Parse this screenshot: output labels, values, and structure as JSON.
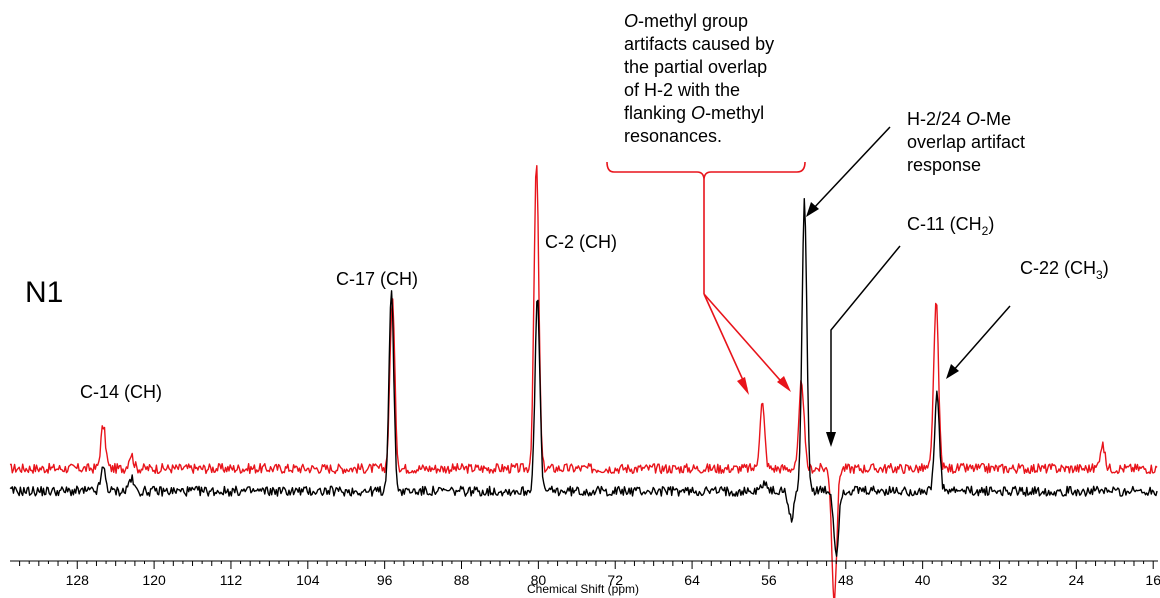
{
  "chart_data": {
    "type": "line",
    "panel_label": "N1",
    "xlabel": "Chemical Shift (ppm)",
    "xlim": [
      135,
      15.5
    ],
    "x_ticks": [
      "128",
      "120",
      "112",
      "104",
      "96",
      "88",
      "80",
      "72",
      "64",
      "56",
      "48",
      "40",
      "32",
      "24",
      "16"
    ],
    "colors": {
      "red": "#e8141b",
      "black": "#000000"
    },
    "series": [
      {
        "color": "red",
        "baseline": 0.06,
        "peaks": [
          {
            "x": 125.3,
            "h": 0.3
          },
          {
            "x": 122.4,
            "h": 0.1
          },
          {
            "x": 95.2,
            "h": 1.2
          },
          {
            "x": 80.2,
            "h": 2.15
          },
          {
            "x": 56.7,
            "h": 0.46
          },
          {
            "x": 52.6,
            "h": 0.62
          },
          {
            "x": 49.2,
            "h": -0.95
          },
          {
            "x": 38.6,
            "h": 1.18
          },
          {
            "x": 21.3,
            "h": 0.17
          }
        ]
      },
      {
        "color": "black",
        "baseline": -0.1,
        "peaks": [
          {
            "x": 125.3,
            "h": 0.16
          },
          {
            "x": 122.4,
            "h": 0.09
          },
          {
            "x": 95.3,
            "h": 1.4
          },
          {
            "x": 80.1,
            "h": 1.36
          },
          {
            "x": 56.5,
            "h": 0.07
          },
          {
            "x": 53.7,
            "h": -0.2
          },
          {
            "x": 52.3,
            "h": 2.05
          },
          {
            "x": 49.0,
            "h": -0.44
          },
          {
            "x": 38.5,
            "h": 0.68
          }
        ]
      }
    ]
  },
  "annotations": {
    "c14": "C-14 (CH)",
    "c17": "C-17 (CH)",
    "c2": "C-2 (CH)",
    "omethyl": {
      "prefix": "O",
      "l1": "-methyl group",
      "l2": "artifacts caused by",
      "l3": "the partial overlap",
      "l4": "of H-2 with the",
      "l5a": "flanking ",
      "l5b": "O",
      "l5c": "-methyl",
      "l6": "resonances."
    },
    "h2": {
      "l1a": "H-2/24 ",
      "l1b": "O",
      "l1c": "-Me",
      "l2": "overlap artifact",
      "l3": "response"
    },
    "c11": {
      "main": "C-11 (CH",
      "sub": "2",
      "close": ")"
    },
    "c22": {
      "main": "C-22 (CH",
      "sub": "3",
      "close": ")"
    }
  }
}
